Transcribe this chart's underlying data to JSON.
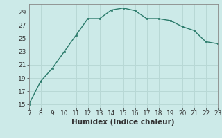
{
  "x": [
    7,
    8,
    9,
    10,
    11,
    12,
    13,
    14,
    15,
    16,
    17,
    18,
    19,
    20,
    21,
    22,
    23
  ],
  "y": [
    15,
    18.5,
    20.5,
    23,
    25.5,
    28.0,
    28.0,
    29.3,
    29.6,
    29.2,
    28.0,
    28.0,
    27.7,
    26.8,
    26.2,
    24.5,
    24.2
  ],
  "xlabel": "Humidex (Indice chaleur)",
  "xlim": [
    7,
    23
  ],
  "ylim": [
    14.5,
    30.2
  ],
  "yticks": [
    15,
    17,
    19,
    21,
    23,
    25,
    27,
    29
  ],
  "xticks": [
    7,
    8,
    9,
    10,
    11,
    12,
    13,
    14,
    15,
    16,
    17,
    18,
    19,
    20,
    21,
    22,
    23
  ],
  "line_color": "#2a7a6a",
  "marker": "s",
  "marker_size": 2.0,
  "bg_color": "#cceae8",
  "grid_color": "#b8d8d5",
  "axis_color": "#888888",
  "font_color": "#333333",
  "xlabel_fontsize": 7.5,
  "tick_fontsize": 6.5
}
